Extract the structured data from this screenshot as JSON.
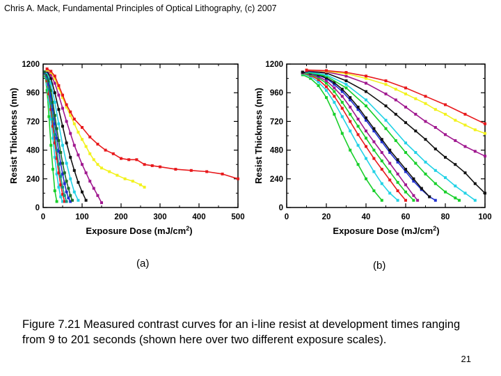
{
  "header": {
    "text": "Chris A. Mack, Fundamental Principles of Optical Lithography, (c) 2007"
  },
  "panel_labels": {
    "a": "(a)",
    "b": "(b)"
  },
  "caption": {
    "text": "Figure 7.21  Measured contrast curves for an i-line resist at development times ranging from 9 to 201 seconds (shown here over two different exposure scales)."
  },
  "page_number": "21",
  "colors": {
    "red": "#e8191c",
    "yellow": "#f2f21e",
    "purple": "#a0188f",
    "black": "#111111",
    "blue": "#1f2fd0",
    "cyan": "#22d2e6",
    "green": "#18cf2a",
    "teal": "#0f9a80",
    "darkgreen": "#1a6b2a"
  },
  "chart_data": [
    {
      "type": "line",
      "panel": "(a)",
      "xlabel": "Exposure Dose (mJ/cm",
      "xlabel_sup": "2",
      "xlabel_end": ")",
      "ylabel": "Resist Thickness (nm)",
      "xlim": [
        0,
        500
      ],
      "ylim": [
        0,
        1200
      ],
      "xticks": [
        0,
        100,
        200,
        300,
        400,
        500
      ],
      "yticks": [
        0,
        240,
        480,
        720,
        960,
        1200
      ],
      "series": [
        {
          "name": "green",
          "color": "green",
          "x": [
            5,
            10,
            15,
            20,
            25,
            30,
            35
          ],
          "y": [
            1100,
            980,
            760,
            520,
            320,
            140,
            50
          ]
        },
        {
          "name": "cyan",
          "color": "cyan",
          "x": [
            5,
            10,
            15,
            20,
            25,
            30,
            35,
            40,
            45,
            50
          ],
          "y": [
            1110,
            1030,
            900,
            740,
            580,
            420,
            280,
            170,
            90,
            50
          ]
        },
        {
          "name": "red-fast",
          "color": "red",
          "x": [
            5,
            10,
            15,
            20,
            25,
            30,
            35,
            40,
            45,
            50,
            55
          ],
          "y": [
            1120,
            1060,
            950,
            820,
            680,
            540,
            410,
            290,
            190,
            110,
            50
          ]
        },
        {
          "name": "teal",
          "color": "teal",
          "x": [
            5,
            10,
            15,
            20,
            25,
            30,
            35,
            40,
            45,
            50,
            55,
            60
          ],
          "y": [
            1125,
            1080,
            990,
            870,
            740,
            610,
            480,
            360,
            260,
            170,
            100,
            50
          ]
        },
        {
          "name": "blue",
          "color": "blue",
          "x": [
            5,
            10,
            15,
            20,
            25,
            30,
            35,
            40,
            45,
            50,
            55,
            60,
            65,
            70
          ],
          "y": [
            1130,
            1100,
            1030,
            930,
            820,
            700,
            580,
            470,
            370,
            280,
            200,
            130,
            80,
            50
          ]
        },
        {
          "name": "darkgreen",
          "color": "darkgreen",
          "x": [
            5,
            10,
            15,
            20,
            25,
            30,
            35,
            40,
            45,
            50,
            55,
            60,
            65,
            70,
            75
          ],
          "y": [
            1135,
            1110,
            1060,
            980,
            880,
            770,
            660,
            560,
            460,
            370,
            290,
            220,
            160,
            100,
            60
          ]
        },
        {
          "name": "cyan-2",
          "color": "cyan",
          "x": [
            10,
            20,
            30,
            40,
            50,
            60,
            70,
            80,
            90
          ],
          "y": [
            1130,
            1040,
            880,
            700,
            520,
            370,
            240,
            130,
            60
          ]
        },
        {
          "name": "black",
          "color": "black",
          "x": [
            10,
            20,
            30,
            40,
            50,
            60,
            70,
            80,
            90,
            100,
            110
          ],
          "y": [
            1140,
            1080,
            960,
            820,
            680,
            540,
            420,
            310,
            210,
            130,
            60
          ]
        },
        {
          "name": "purple",
          "color": "purple",
          "x": [
            10,
            20,
            30,
            40,
            50,
            60,
            70,
            80,
            90,
            100,
            110,
            120,
            130,
            140,
            150
          ],
          "y": [
            1145,
            1110,
            1040,
            940,
            830,
            720,
            620,
            520,
            440,
            360,
            290,
            220,
            160,
            100,
            40
          ]
        },
        {
          "name": "yellow",
          "color": "yellow",
          "x": [
            10,
            20,
            30,
            40,
            50,
            60,
            70,
            80,
            90,
            100,
            110,
            120,
            130,
            140,
            150,
            170,
            190,
            210,
            230,
            250,
            260
          ],
          "y": [
            1150,
            1130,
            1080,
            1000,
            920,
            840,
            770,
            700,
            630,
            570,
            510,
            450,
            400,
            360,
            330,
            300,
            270,
            240,
            220,
            190,
            170
          ]
        },
        {
          "name": "red",
          "color": "red",
          "x": [
            10,
            20,
            30,
            40,
            50,
            60,
            70,
            80,
            100,
            120,
            140,
            160,
            180,
            200,
            220,
            240,
            260,
            280,
            300,
            340,
            380,
            420,
            460,
            500
          ],
          "y": [
            1160,
            1140,
            1100,
            1020,
            940,
            860,
            800,
            740,
            670,
            590,
            530,
            480,
            450,
            410,
            400,
            400,
            360,
            350,
            340,
            320,
            310,
            300,
            280,
            240
          ]
        }
      ]
    },
    {
      "type": "line",
      "panel": "(b)",
      "xlabel": "Exposure Dose (mJ/cm",
      "xlabel_sup": "2",
      "xlabel_end": ")",
      "ylabel": "Resist Thickness (nm)",
      "xlim": [
        0,
        100
      ],
      "ylim": [
        0,
        1200
      ],
      "xticks": [
        0,
        20,
        40,
        60,
        80,
        100
      ],
      "yticks": [
        0,
        240,
        480,
        720,
        960,
        1200
      ],
      "series": [
        {
          "name": "green",
          "color": "green",
          "x": [
            8,
            12,
            16,
            20,
            24,
            28,
            32,
            36,
            40,
            44,
            48
          ],
          "y": [
            1110,
            1080,
            1020,
            920,
            780,
            620,
            480,
            360,
            240,
            140,
            60
          ]
        },
        {
          "name": "cyan",
          "color": "cyan",
          "x": [
            8,
            12,
            16,
            20,
            24,
            28,
            32,
            36,
            40,
            44,
            48,
            52,
            56
          ],
          "y": [
            1120,
            1095,
            1050,
            980,
            880,
            760,
            640,
            520,
            410,
            300,
            200,
            120,
            60
          ]
        },
        {
          "name": "red-fast",
          "color": "red",
          "x": [
            8,
            12,
            16,
            20,
            24,
            28,
            32,
            36,
            40,
            44,
            48,
            52,
            56,
            60
          ],
          "y": [
            1125,
            1105,
            1070,
            1010,
            930,
            830,
            720,
            610,
            510,
            410,
            320,
            230,
            140,
            60
          ]
        },
        {
          "name": "green-2",
          "color": "green",
          "x": [
            8,
            12,
            16,
            20,
            24,
            28,
            32,
            36,
            40,
            44,
            48,
            52,
            56,
            60,
            64
          ],
          "y": [
            1128,
            1112,
            1085,
            1040,
            970,
            880,
            780,
            680,
            580,
            480,
            390,
            300,
            210,
            130,
            60
          ]
        },
        {
          "name": "purple-fast",
          "color": "purple",
          "x": [
            8,
            12,
            16,
            20,
            24,
            28,
            32,
            36,
            40,
            44,
            48,
            52,
            56,
            60,
            64,
            66
          ],
          "y": [
            1130,
            1118,
            1095,
            1060,
            1000,
            930,
            840,
            740,
            640,
            550,
            460,
            370,
            280,
            190,
            100,
            60
          ]
        },
        {
          "name": "blue",
          "color": "blue",
          "x": [
            8,
            12,
            16,
            20,
            24,
            28,
            32,
            36,
            40,
            44,
            48,
            52,
            56,
            60,
            64,
            68,
            72,
            75
          ],
          "y": [
            1132,
            1122,
            1105,
            1080,
            1030,
            970,
            900,
            820,
            730,
            640,
            550,
            460,
            380,
            300,
            220,
            150,
            90,
            60
          ]
        },
        {
          "name": "black-mid",
          "color": "black",
          "x": [
            8,
            12,
            16,
            20,
            24,
            28,
            32,
            36,
            40,
            44,
            48,
            52,
            56,
            60,
            64,
            68,
            72
          ],
          "y": [
            1133,
            1125,
            1110,
            1085,
            1045,
            990,
            920,
            840,
            750,
            660,
            570,
            480,
            400,
            320,
            240,
            160,
            90
          ]
        },
        {
          "name": "green-3",
          "color": "green",
          "x": [
            10,
            20,
            30,
            40,
            50,
            55,
            60,
            65,
            70,
            75,
            80,
            85,
            87
          ],
          "y": [
            1130,
            1100,
            1000,
            850,
            660,
            560,
            460,
            370,
            280,
            200,
            130,
            80,
            60
          ]
        },
        {
          "name": "cyan-2",
          "color": "cyan",
          "x": [
            10,
            20,
            30,
            40,
            50,
            60,
            65,
            70,
            75,
            80,
            85,
            90,
            95
          ],
          "y": [
            1135,
            1110,
            1030,
            900,
            730,
            540,
            460,
            380,
            310,
            250,
            180,
            120,
            60
          ]
        },
        {
          "name": "black",
          "color": "black",
          "x": [
            10,
            20,
            30,
            40,
            50,
            55,
            60,
            65,
            70,
            75,
            80,
            85,
            90,
            95,
            100
          ],
          "y": [
            1140,
            1125,
            1060,
            970,
            850,
            780,
            710,
            640,
            570,
            490,
            420,
            360,
            290,
            200,
            120
          ]
        },
        {
          "name": "purple",
          "color": "purple",
          "x": [
            10,
            20,
            30,
            40,
            50,
            55,
            60,
            65,
            70,
            75,
            80,
            85,
            90,
            95,
            100
          ],
          "y": [
            1145,
            1135,
            1100,
            1040,
            950,
            900,
            840,
            780,
            720,
            670,
            610,
            560,
            510,
            470,
            430
          ]
        },
        {
          "name": "yellow",
          "color": "yellow",
          "x": [
            10,
            20,
            30,
            40,
            50,
            55,
            60,
            65,
            70,
            75,
            80,
            85,
            90,
            95,
            100
          ],
          "y": [
            1150,
            1140,
            1120,
            1080,
            1030,
            990,
            950,
            910,
            870,
            820,
            780,
            730,
            690,
            650,
            620
          ]
        },
        {
          "name": "red",
          "color": "red",
          "x": [
            10,
            20,
            30,
            40,
            50,
            60,
            70,
            80,
            90,
            100
          ],
          "y": [
            1150,
            1145,
            1130,
            1100,
            1060,
            1000,
            930,
            860,
            780,
            700
          ]
        }
      ]
    }
  ]
}
